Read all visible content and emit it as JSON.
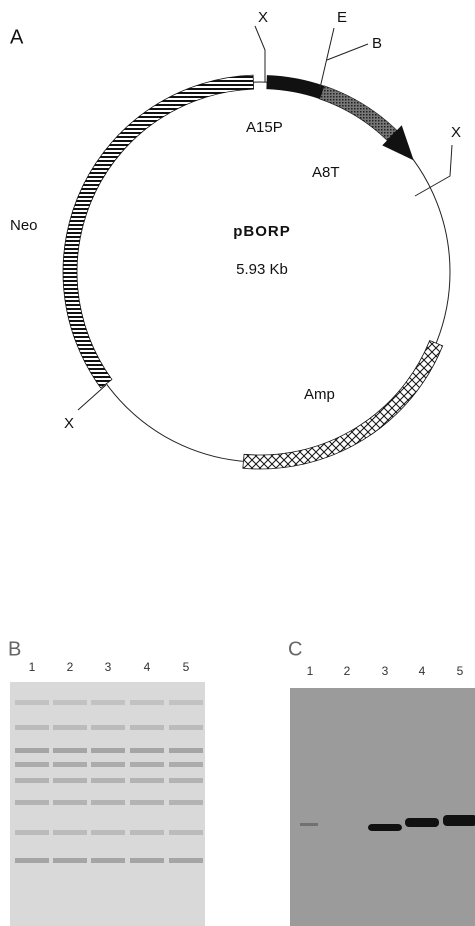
{
  "panel_a": {
    "label": "A",
    "sites": {
      "x_top": "X",
      "e": "E",
      "b": "B",
      "x_right": "X",
      "x_left": "X"
    },
    "segments": {
      "promoter": "A15P",
      "insert": "A8T",
      "neo": "Neo",
      "amp": "Amp"
    },
    "plasmid": {
      "name": "pBORP",
      "size": "5.93 Kb"
    }
  },
  "panel_b": {
    "label": "B",
    "lanes": [
      "1",
      "2",
      "3",
      "4",
      "5"
    ]
  },
  "panel_c": {
    "label": "C",
    "lanes": [
      "1",
      "2",
      "3",
      "4",
      "5"
    ]
  }
}
